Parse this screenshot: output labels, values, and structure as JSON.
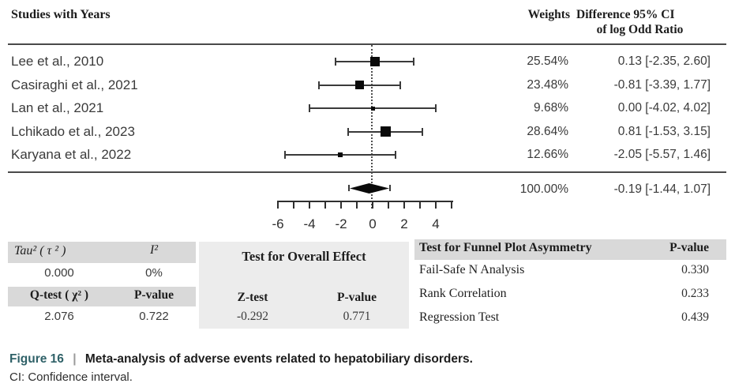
{
  "figure_header": {
    "col_studies": "Studies with Years",
    "col_weights": "Weights",
    "col_diff_line1": "Difference 95% CI",
    "col_diff_line2": "of log Odd Ratio"
  },
  "chart_data": {
    "type": "scatter",
    "variant": "forest-plot",
    "title": "Meta-analysis of adverse events related to hepatobiliary disorders",
    "xlabel": "",
    "ylabel": "",
    "x_axis": {
      "tick_labels": [
        -6,
        -4,
        -2,
        0,
        2,
        4
      ],
      "tick_step": 1,
      "range": [
        -6,
        5
      ],
      "zero_reference_line": 0
    },
    "studies": [
      {
        "label": "Lee et al., 2010",
        "weight_pct": 25.54,
        "estimate": 0.13,
        "ci_low": -2.35,
        "ci_high": 2.6,
        "weight_text": "25.54%",
        "ci_text": "0.13 [-2.35, 2.60]"
      },
      {
        "label": "Casiraghi et al., 2021",
        "weight_pct": 23.48,
        "estimate": -0.81,
        "ci_low": -3.39,
        "ci_high": 1.77,
        "weight_text": "23.48%",
        "ci_text": "-0.81 [-3.39, 1.77]"
      },
      {
        "label": "Lan et al., 2021",
        "weight_pct": 9.68,
        "estimate": 0.0,
        "ci_low": -4.02,
        "ci_high": 4.02,
        "weight_text": "9.68%",
        "ci_text": "0.00 [-4.02, 4.02]"
      },
      {
        "label": "Lchikado et al., 2023",
        "weight_pct": 28.64,
        "estimate": 0.81,
        "ci_low": -1.53,
        "ci_high": 3.15,
        "weight_text": "28.64%",
        "ci_text": "0.81 [-1.53, 3.15]"
      },
      {
        "label": "Karyana et al., 2022",
        "weight_pct": 12.66,
        "estimate": -2.05,
        "ci_low": -5.57,
        "ci_high": 1.46,
        "weight_text": "12.66%",
        "ci_text": "-2.05 [-5.57, 1.46]"
      }
    ],
    "overall": {
      "weight_pct": 100.0,
      "estimate": -0.19,
      "ci_low": -1.44,
      "ci_high": 1.07,
      "weight_text": "100.00%",
      "ci_text": "-0.19 [-1.44, 1.07]"
    }
  },
  "stats": {
    "heterogeneity": {
      "tau2_label": "Tau² ( τ ² )",
      "i2_label": "I²",
      "tau2_value": "0.000",
      "i2_value": "0%",
      "q_label": "Q-test ( χ² )",
      "qp_label": "P-value",
      "q_value": "2.076",
      "qp_value": "0.722"
    },
    "overall_effect": {
      "title": "Test for Overall Effect",
      "z_label": "Z-test",
      "p_label": "P-value",
      "z_value": "-0.292",
      "p_value": "0.771"
    },
    "funnel": {
      "title": "Test for Funnel Plot Asymmetry",
      "p_col_label": "P-value",
      "rows": [
        {
          "label": "Fail-Safe N Analysis",
          "value": "0.330"
        },
        {
          "label": "Rank Correlation",
          "value": "0.233"
        },
        {
          "label": "Regression Test",
          "value": "0.439"
        }
      ]
    }
  },
  "caption": {
    "figure_label": "Figure 16",
    "separator": "|",
    "title": "Meta-analysis of adverse events related to hepatobiliary disorders.",
    "note": "CI: Confidence interval.",
    "accent_color": "#2f6168"
  },
  "colors": {
    "marker": "#0a0a0a",
    "line": "#4a4a4a",
    "header_band": "#d9d9d9",
    "middle_block": "#ececec"
  }
}
